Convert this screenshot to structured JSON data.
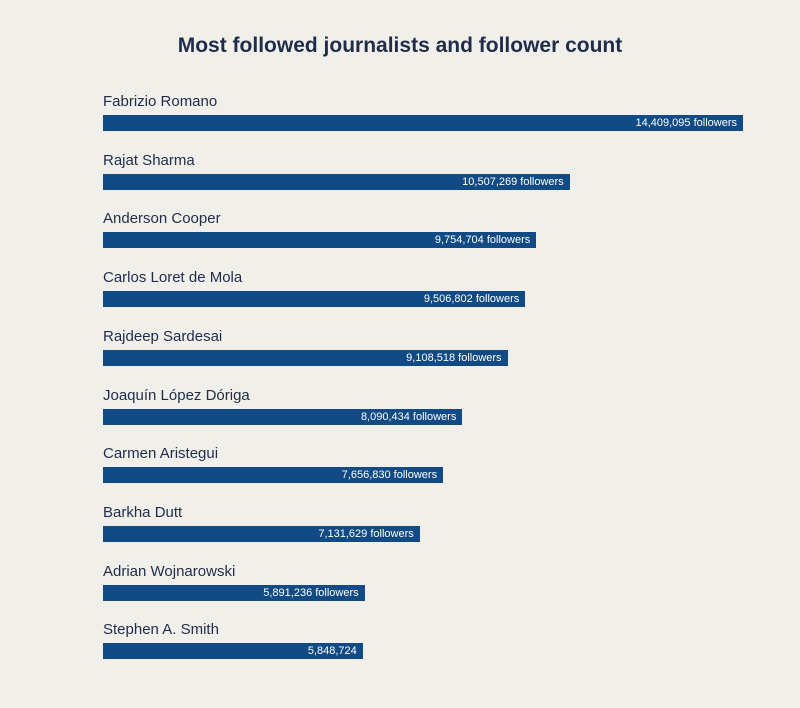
{
  "chart_data": {
    "type": "bar",
    "orientation": "horizontal",
    "title": "Most followed journalists and follower count",
    "categories": [
      "Fabrizio Romano",
      "Rajat Sharma",
      "Anderson Cooper",
      "Carlos Loret de Mola",
      "Rajdeep Sardesai",
      "Joaquín López Dóriga",
      "Carmen Aristegui",
      "Barkha Dutt",
      "Adrian Wojnarowski",
      "Stephen A. Smith"
    ],
    "values": [
      14409095,
      10507269,
      9754704,
      9506802,
      9108518,
      8090434,
      7656830,
      7131629,
      5891236,
      5848724
    ],
    "data_labels": [
      "14,409,095 followers",
      "10,507,269 followers",
      "9,754,704 followers",
      "9,506,802 followers",
      "9,108,518 followers",
      "8,090,434 followers",
      "7,656,830 followers",
      "7,131,629 followers",
      "5,891,236 followers",
      "5,848,724"
    ],
    "xlim": [
      0,
      14409095
    ],
    "grid": false,
    "colors": {
      "bar": "#114a85",
      "background": "#f1efea",
      "text": "#1f2d4a"
    }
  }
}
